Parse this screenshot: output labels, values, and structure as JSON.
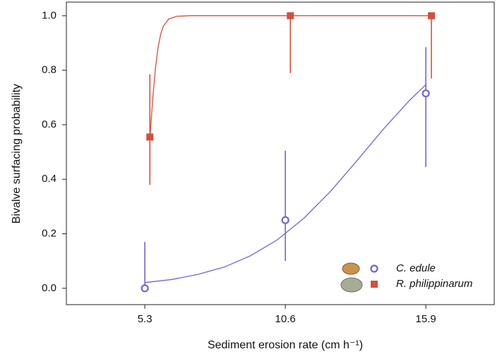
{
  "chart_data": {
    "type": "scatter",
    "x_label": "Sediment erosion rate (cm h⁻¹)",
    "y_label": "Bivalve surfacing probability",
    "xlim": [
      2.34,
      18.48
    ],
    "ylim": [
      -0.06,
      1.05
    ],
    "xticks": [
      5.3,
      10.6,
      15.9
    ],
    "yticks": [
      {
        "value": 0,
        "label": "0.0"
      },
      {
        "value": 0.2,
        "label": "0.2"
      },
      {
        "value": 0.4,
        "label": "0.4"
      },
      {
        "value": 0.6,
        "label": "0.6"
      },
      {
        "value": 0.8,
        "label": "0.8"
      },
      {
        "value": 1,
        "label": "1.0"
      }
    ],
    "legend": "bottom-right",
    "series": [
      {
        "name": "C. edule",
        "color": "#7462d8",
        "marker": "circle",
        "x": [
          5.3,
          10.6,
          15.9
        ],
        "values": [
          0,
          0.25,
          0.715
        ],
        "lower": [
          0,
          0.1,
          0.445
        ],
        "upper": [
          0.17,
          0.505,
          0.885
        ],
        "fit_x": [
          5.3,
          6.3,
          7.3,
          8.3,
          9.3,
          10.3,
          11.3,
          12.3,
          13.3,
          14.3,
          15.3,
          15.9
        ],
        "fit_values": [
          0.021,
          0.032,
          0.051,
          0.078,
          0.12,
          0.178,
          0.257,
          0.355,
          0.468,
          0.584,
          0.691,
          0.747
        ]
      },
      {
        "name": "R. philippinarum",
        "color": "#d4503a",
        "marker": "square",
        "x": [
          5.49,
          10.79,
          16.11
        ],
        "values": [
          0.555,
          1,
          1
        ],
        "lower": [
          0.38,
          0.79,
          0.77
        ],
        "upper": [
          0.785,
          1,
          1
        ],
        "fit_x": [
          5.5,
          5.6,
          5.7,
          5.8,
          5.9,
          6.0,
          6.2,
          6.5,
          7,
          8,
          10,
          16.1
        ],
        "fit_values": [
          0.56,
          0.698,
          0.808,
          0.885,
          0.933,
          0.962,
          0.988,
          0.998,
          1,
          1,
          1,
          1
        ]
      }
    ]
  }
}
